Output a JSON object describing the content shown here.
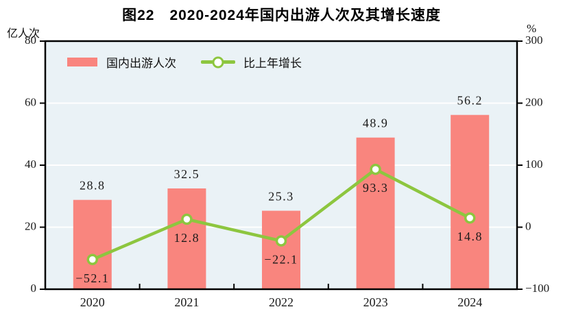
{
  "chart_data": {
    "type": "bar+line",
    "title": "图22　2020-2024年国内出游人次及其增长速度",
    "categories": [
      "2020",
      "2021",
      "2022",
      "2023",
      "2024"
    ],
    "series": [
      {
        "name": "国内出游人次",
        "type": "bar",
        "axis": "left",
        "unit": "亿人次",
        "values": [
          28.8,
          32.5,
          25.3,
          48.9,
          56.2
        ],
        "labels": [
          "28.8",
          "32.5",
          "25.3",
          "48.9",
          "56.2"
        ],
        "color": "#f9857e"
      },
      {
        "name": "比上年增长",
        "type": "line",
        "axis": "right",
        "unit": "%",
        "values": [
          -52.1,
          12.8,
          -22.1,
          93.3,
          14.8
        ],
        "labels": [
          "−52.1",
          "12.8",
          "−22.1",
          "93.3",
          "14.8"
        ],
        "color": "#8dc63f",
        "marker": "circle",
        "marker_fill": "#ffffff"
      }
    ],
    "left_axis": {
      "label": "亿人次",
      "range": [
        0,
        80
      ],
      "ticks": [
        0,
        20,
        40,
        60,
        80
      ],
      "tick_labels": [
        "0",
        "20",
        "40",
        "60",
        "80"
      ]
    },
    "right_axis": {
      "label": "%",
      "range": [
        -100,
        300
      ],
      "ticks": [
        -100,
        0,
        100,
        200,
        300
      ],
      "tick_labels": [
        "−100",
        "0",
        "100",
        "200",
        "300"
      ]
    },
    "grid": true,
    "legend_position": "top-left",
    "colors": {
      "plot_background": "#eaf2f6",
      "gridline": "#ffffff",
      "axis_border": "#000000",
      "text": "#1a1a1a",
      "title": "#000000"
    }
  }
}
